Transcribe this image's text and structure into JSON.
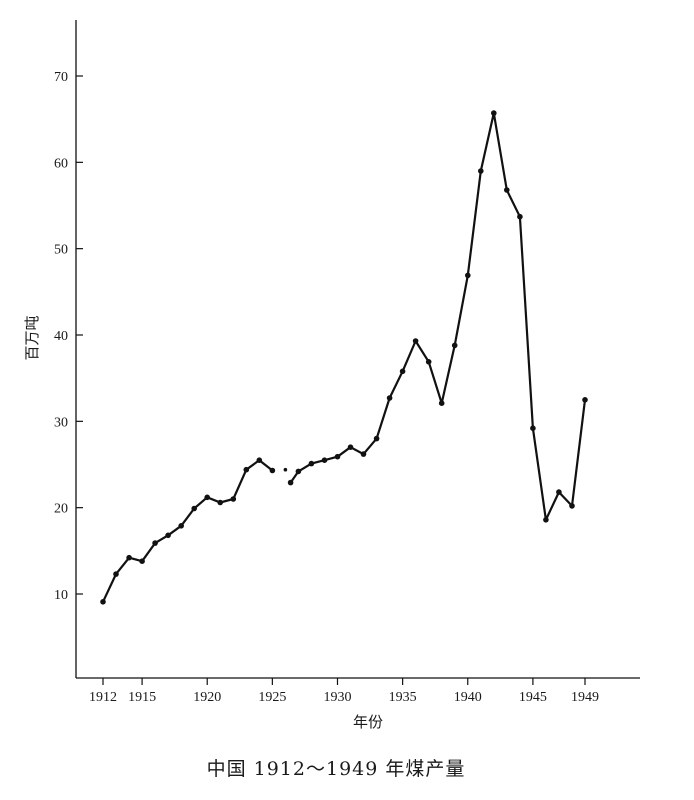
{
  "chart_data": {
    "type": "line",
    "title": "中国 1912～1949 年煤产量",
    "xlabel": "年份",
    "ylabel": "百万吨",
    "xlim": [
      1910,
      1952
    ],
    "ylim": [
      0,
      76
    ],
    "x_ticks": [
      {
        "value": 1912,
        "label": "1912"
      },
      {
        "value": 1915,
        "label": "1915"
      },
      {
        "value": 1920,
        "label": "1920"
      },
      {
        "value": 1925,
        "label": "1925"
      },
      {
        "value": 1930,
        "label": "1930"
      },
      {
        "value": 1935,
        "label": "1935"
      },
      {
        "value": 1940,
        "label": "1940"
      },
      {
        "value": 1945,
        "label": "1945"
      },
      {
        "value": 1949,
        "label": "1949"
      }
    ],
    "y_ticks": [
      {
        "value": 10,
        "label": "10"
      },
      {
        "value": 20,
        "label": "20"
      },
      {
        "value": 30,
        "label": "30"
      },
      {
        "value": 40,
        "label": "40"
      },
      {
        "value": 50,
        "label": "50"
      },
      {
        "value": 60,
        "label": "60"
      },
      {
        "value": 70,
        "label": "70"
      }
    ],
    "grid": false,
    "color": "#111111",
    "series": [
      {
        "segments": [
          [
            {
              "x": 1912,
              "y": 9.1
            },
            {
              "x": 1913,
              "y": 12.3
            },
            {
              "x": 1914,
              "y": 14.2
            },
            {
              "x": 1915,
              "y": 13.8
            },
            {
              "x": 1916,
              "y": 15.9
            },
            {
              "x": 1917,
              "y": 16.8
            },
            {
              "x": 1918,
              "y": 17.9
            },
            {
              "x": 1919,
              "y": 19.9
            },
            {
              "x": 1920,
              "y": 21.2
            },
            {
              "x": 1921,
              "y": 20.6
            },
            {
              "x": 1922,
              "y": 21.0
            },
            {
              "x": 1923,
              "y": 24.4
            },
            {
              "x": 1924,
              "y": 25.5
            },
            {
              "x": 1925,
              "y": 24.3
            }
          ],
          [
            {
              "x": 1926,
              "y": 24.4
            }
          ],
          [
            {
              "x": 1926.4,
              "y": 22.9
            },
            {
              "x": 1927,
              "y": 24.2
            },
            {
              "x": 1928,
              "y": 25.1
            },
            {
              "x": 1929,
              "y": 25.5
            },
            {
              "x": 1930,
              "y": 25.9
            },
            {
              "x": 1931,
              "y": 27.0
            },
            {
              "x": 1932,
              "y": 26.2
            },
            {
              "x": 1933,
              "y": 28.0
            },
            {
              "x": 1934,
              "y": 32.7
            },
            {
              "x": 1935,
              "y": 35.8
            },
            {
              "x": 1936,
              "y": 39.3
            },
            {
              "x": 1937,
              "y": 36.9
            },
            {
              "x": 1938,
              "y": 32.1
            },
            {
              "x": 1939,
              "y": 38.8
            },
            {
              "x": 1940,
              "y": 46.9
            },
            {
              "x": 1941,
              "y": 59.0
            },
            {
              "x": 1942,
              "y": 65.7
            },
            {
              "x": 1943,
              "y": 56.8
            },
            {
              "x": 1944,
              "y": 53.7
            },
            {
              "x": 1945,
              "y": 29.2
            },
            {
              "x": 1946,
              "y": 18.6
            },
            {
              "x": 1947,
              "y": 21.8
            },
            {
              "x": 1948,
              "y": 20.2
            },
            {
              "x": 1949,
              "y": 32.5
            }
          ]
        ]
      }
    ]
  }
}
